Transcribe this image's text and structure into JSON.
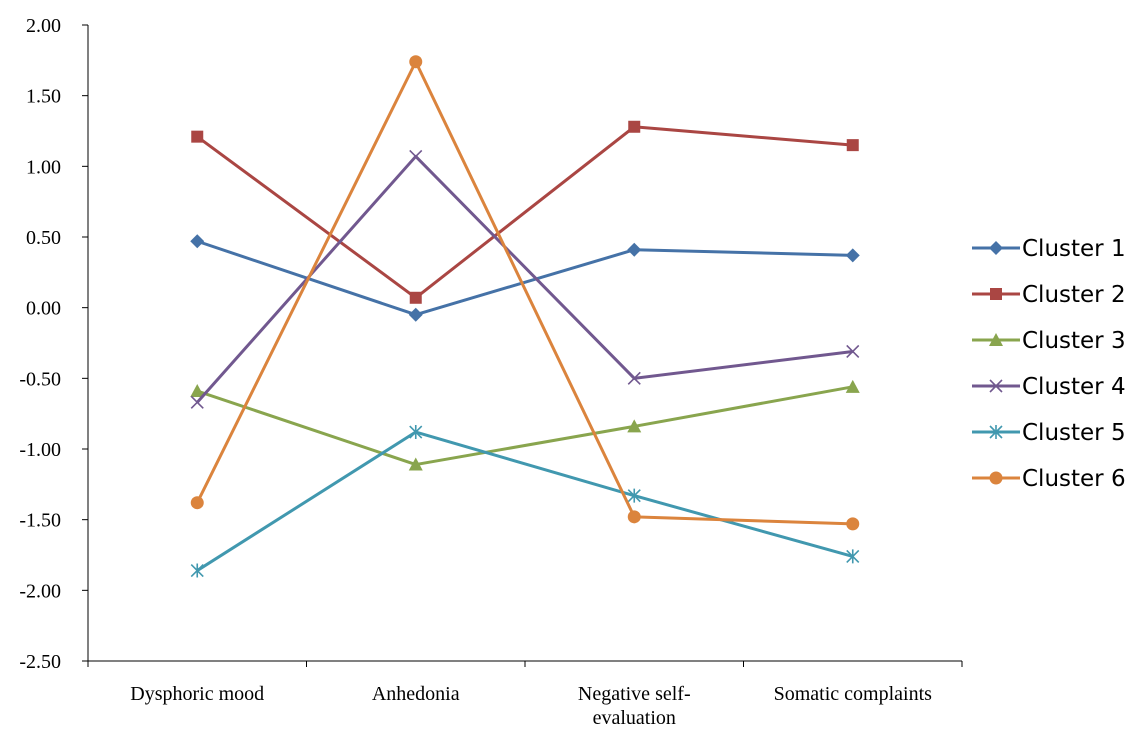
{
  "chart_data": {
    "type": "line",
    "categories": [
      [
        "Dysphoric mood"
      ],
      [
        "Anhedonia"
      ],
      [
        "Negative self-",
        "evaluation"
      ],
      [
        "Somatic complaints"
      ]
    ],
    "yticks": [
      "2.00",
      "1.50",
      "1.00",
      "0.50",
      "0.00",
      "-0.50",
      "-1.00",
      "-1.50",
      "-2.00",
      "-2.50"
    ],
    "ylim": [
      -2.5,
      2.0
    ],
    "grid": false,
    "legend_position": "right",
    "series": [
      {
        "name": "Cluster 1",
        "color": "#4572A7",
        "marker": "diamond",
        "values": [
          0.47,
          -0.05,
          0.41,
          0.37
        ]
      },
      {
        "name": "Cluster 2",
        "color": "#AA4643",
        "marker": "square",
        "values": [
          1.21,
          0.07,
          1.28,
          1.15
        ]
      },
      {
        "name": "Cluster 3",
        "color": "#89A54E",
        "marker": "triangle",
        "values": [
          -0.59,
          -1.11,
          -0.84,
          -0.56
        ]
      },
      {
        "name": "Cluster 4",
        "color": "#71588F",
        "marker": "x",
        "values": [
          -0.67,
          1.07,
          -0.5,
          -0.31
        ]
      },
      {
        "name": "Cluster 5",
        "color": "#4198AF",
        "marker": "asterisk",
        "values": [
          -1.86,
          -0.88,
          -1.33,
          -1.76
        ]
      },
      {
        "name": "Cluster 6",
        "color": "#DB843D",
        "marker": "circle",
        "values": [
          -1.38,
          1.74,
          -1.48,
          -1.53
        ]
      }
    ]
  }
}
